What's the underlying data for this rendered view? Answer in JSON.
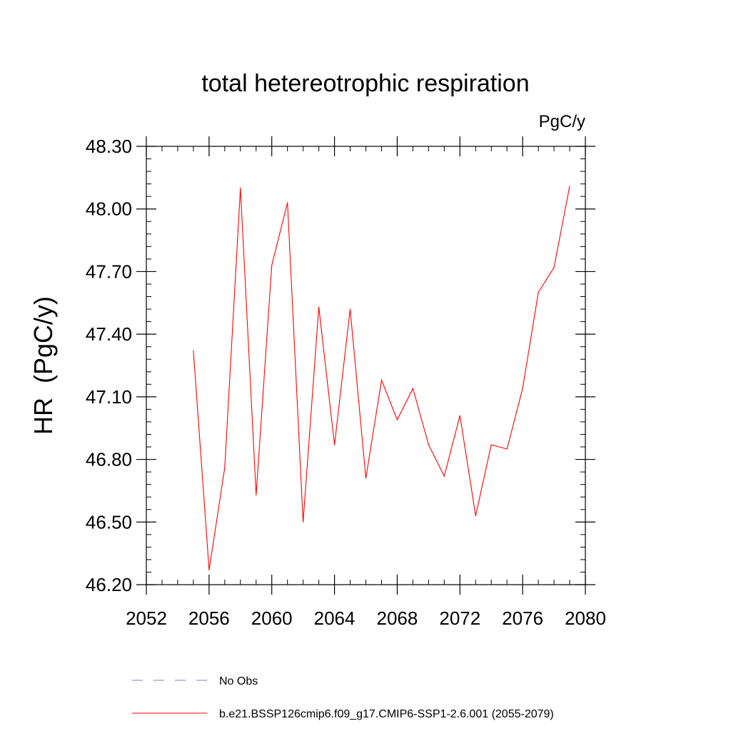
{
  "chart_data": {
    "type": "line",
    "title": "total hetereotrophic respiration",
    "units_label": "PgC/y",
    "ylabel": "HR  (PgC/y)",
    "xlabel": "",
    "xlim": [
      2052,
      2080
    ],
    "ylim": [
      46.2,
      48.3
    ],
    "x_ticks": [
      2052,
      2056,
      2060,
      2064,
      2068,
      2072,
      2076,
      2080
    ],
    "y_ticks": [
      "46.20",
      "46.50",
      "46.80",
      "47.10",
      "47.40",
      "47.70",
      "48.00",
      "48.30"
    ],
    "series": [
      {
        "name": "b.e21.BSSP126cmip6.f09_g17.CMIP6-SSP1-2.6.001 (2055-2079)",
        "color": "#ff0000",
        "x": [
          2055,
          2056,
          2057,
          2058,
          2059,
          2060,
          2061,
          2062,
          2063,
          2064,
          2065,
          2066,
          2067,
          2068,
          2069,
          2070,
          2071,
          2072,
          2073,
          2074,
          2075,
          2076,
          2077,
          2078,
          2079
        ],
        "y": [
          47.32,
          46.27,
          46.76,
          48.1,
          46.63,
          47.73,
          48.03,
          46.5,
          47.53,
          46.87,
          47.52,
          46.71,
          47.18,
          46.99,
          47.14,
          46.87,
          46.72,
          47.01,
          46.53,
          46.87,
          46.85,
          47.14,
          47.6,
          47.72,
          48.11
        ]
      }
    ],
    "legend": [
      {
        "label": "No Obs",
        "style": "dashed",
        "color": "#7f7fbf"
      },
      {
        "label": "b.e21.BSSP126cmip6.f09_g17.CMIP6-SSP1-2.6.001 (2055-2079)",
        "style": "solid",
        "color": "#ff0000"
      }
    ]
  }
}
